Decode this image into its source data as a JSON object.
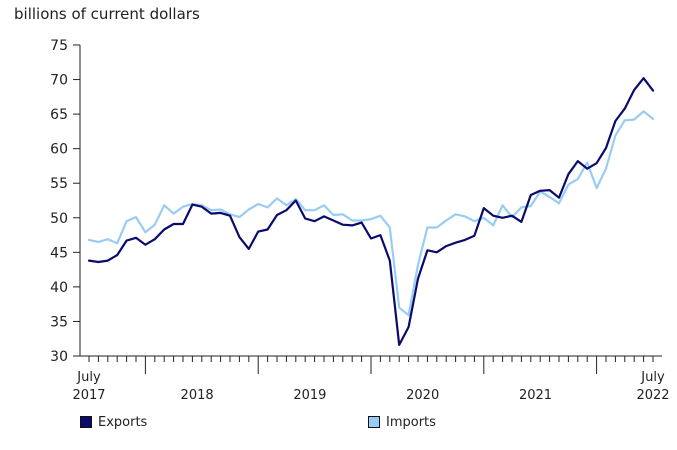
{
  "chart_data": {
    "type": "line",
    "ylabel": "billions of current dollars",
    "ylim": [
      30,
      75
    ],
    "yticks": [
      30,
      35,
      40,
      45,
      50,
      55,
      60,
      65,
      70,
      75
    ],
    "x_start": "2017-07",
    "x_end": "2022-07",
    "x_tick_labels": [
      {
        "month": "2017-07",
        "lines": [
          "July",
          "2017"
        ]
      },
      {
        "month": "2018-01",
        "lines": [
          "",
          "2018"
        ]
      },
      {
        "month": "2019-01",
        "lines": [
          "",
          "2019"
        ]
      },
      {
        "month": "2020-01",
        "lines": [
          "",
          "2020"
        ]
      },
      {
        "month": "2021-01",
        "lines": [
          "",
          "2021"
        ]
      },
      {
        "month": "2022-07",
        "lines": [
          "July",
          "2022"
        ]
      }
    ],
    "grid": false,
    "legend_position": "bottom",
    "series": [
      {
        "name": "Exports",
        "color": "#0b0b6b",
        "values": [
          43.8,
          43.6,
          43.8,
          44.6,
          46.7,
          47.1,
          46.1,
          46.9,
          48.3,
          49.1,
          49.1,
          51.9,
          51.6,
          50.6,
          50.7,
          50.3,
          47.2,
          45.5,
          48.0,
          48.3,
          50.4,
          51.1,
          52.5,
          49.9,
          49.5,
          50.2,
          49.6,
          49.0,
          48.9,
          49.3,
          47.0,
          47.5,
          43.8,
          31.6,
          34.2,
          41.2,
          45.3,
          45.0,
          45.9,
          46.4,
          46.8,
          47.4,
          51.4,
          50.3,
          50.0,
          50.3,
          49.4,
          53.3,
          53.9,
          54.0,
          52.9,
          56.3,
          58.2,
          57.1,
          57.9,
          60.1,
          64.0,
          65.8,
          68.5,
          70.2,
          68.4
        ]
      },
      {
        "name": "Imports",
        "color": "#99ccf5",
        "values": [
          46.8,
          46.5,
          46.9,
          46.3,
          49.5,
          50.1,
          47.9,
          49.0,
          51.8,
          50.6,
          51.6,
          52.0,
          51.8,
          51.1,
          51.2,
          50.5,
          50.1,
          51.2,
          52.0,
          51.5,
          52.8,
          51.8,
          52.7,
          51.1,
          51.1,
          51.8,
          50.4,
          50.5,
          49.6,
          49.6,
          49.8,
          50.3,
          48.6,
          37.0,
          35.9,
          43.2,
          48.6,
          48.6,
          49.6,
          50.5,
          50.2,
          49.5,
          50.0,
          48.9,
          51.8,
          50.1,
          51.5,
          51.7,
          53.8,
          53.0,
          52.1,
          54.8,
          55.6,
          58.0,
          54.3,
          57.1,
          61.9,
          64.1,
          64.2,
          65.4,
          64.3
        ]
      }
    ]
  }
}
